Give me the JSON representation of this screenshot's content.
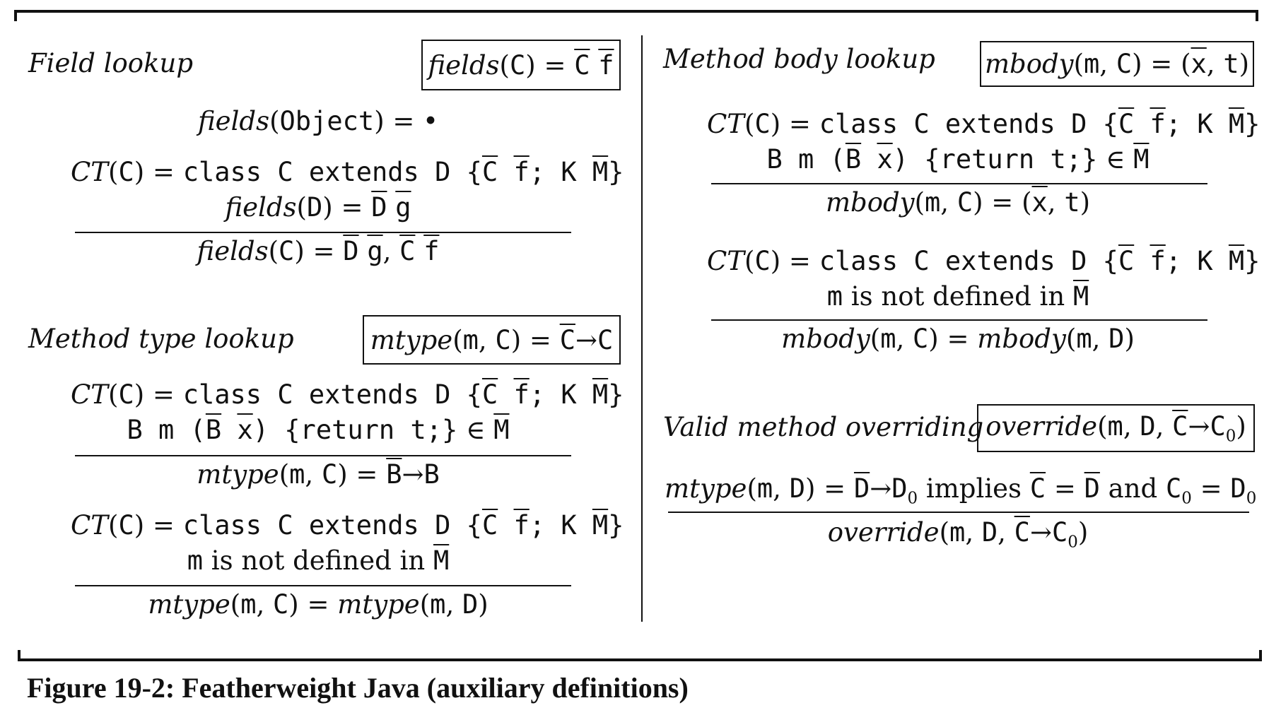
{
  "field_lookup": {
    "title": "Field lookup",
    "judgment": "fields(C) = C̅ f̅",
    "rule1": "fields(Object) = •",
    "rule2": {
      "premises": [
        "CT(C) = class C extends D {C̅ f̅; K M̅}",
        "fields(D) = D̅ g̅"
      ],
      "conclusion": "fields(C) = D̅ g̅, C̅ f̅"
    }
  },
  "method_type_lookup": {
    "title": "Method type lookup",
    "judgment": "mtype(m, C) = C̅→C",
    "rule1": {
      "premises": [
        "CT(C) = class C extends D {C̅ f̅; K M̅}",
        "B m (B̅ x̅) {return t;} ∈ M̅"
      ],
      "conclusion": "mtype(m, C) = B̅→B"
    },
    "rule2": {
      "premises": [
        "CT(C) = class C extends D {C̅ f̅; K M̅}",
        "m is not defined in M̅"
      ],
      "conclusion": "mtype(m, C) = mtype(m, D)"
    }
  },
  "method_body_lookup": {
    "title": "Method body lookup",
    "judgment": "mbody(m, C) = (x̅, t)",
    "rule1": {
      "premises": [
        "CT(C) = class C extends D {C̅ f̅; K M̅}",
        "B m (B̅ x̅) {return t;} ∈ M̅"
      ],
      "conclusion": "mbody(m, C) = (x̅, t)"
    },
    "rule2": {
      "premises": [
        "CT(C) = class C extends D {C̅ f̅; K M̅}",
        "m is not defined in M̅"
      ],
      "conclusion": "mbody(m, C) = mbody(m, D)"
    }
  },
  "valid_method_overriding": {
    "title": "Valid method overriding",
    "judgment": "override(m, D, C̅→C0)",
    "rule": {
      "premises": [
        "mtype(m, D) = D̅→D0 implies C̅ = D̅ and C0 = D0"
      ],
      "conclusion": "override(m, D, C̅→C0)"
    }
  },
  "caption": "Figure 19-2: Featherweight Java (auxiliary definitions)"
}
